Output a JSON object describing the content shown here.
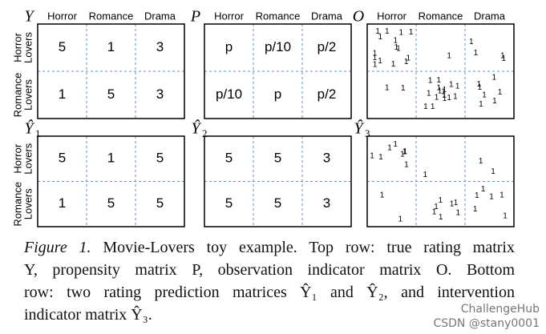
{
  "figure": {
    "matrices": [
      {
        "symbol": "Y",
        "columns": [
          "Horror",
          "Romance",
          "Drama"
        ],
        "rows": [
          [
            "Horror",
            "Lovers"
          ],
          [
            "Romance",
            "Lovers"
          ]
        ],
        "cells": [
          [
            5,
            1,
            3
          ],
          [
            1,
            5,
            3
          ]
        ]
      },
      {
        "symbol": "P",
        "columns": [
          "Horror",
          "Romance",
          "Drama"
        ],
        "cells": [
          [
            "p",
            "p/10",
            "p/2"
          ],
          [
            "p/10",
            "p",
            "p/2"
          ]
        ]
      },
      {
        "symbol": "O",
        "columns": [
          "Horror",
          "Romance",
          "Drama"
        ],
        "cells": [
          [
            [
              "1",
              "1",
              "1",
              "1",
              "1",
              "1",
              "1",
              "1",
              "1",
              "1",
              "1",
              "1",
              "1",
              "1",
              "1"
            ],
            [
              "1"
            ],
            [
              "1",
              "1",
              "1",
              "1"
            ]
          ],
          [
            [
              "1",
              "1"
            ],
            [
              "1",
              "1",
              "1",
              "1",
              "1",
              "1",
              "1",
              "1",
              "1",
              "1",
              "1",
              "1",
              "1",
              "1",
              "1",
              "1"
            ],
            [
              "1",
              "1",
              "1",
              "1",
              "1",
              "1",
              "1"
            ]
          ]
        ]
      },
      {
        "symbol": "Ŷ",
        "subscript": "1",
        "rows": [
          [
            "Horror",
            "Lovers"
          ],
          [
            "Romance",
            "Lovers"
          ]
        ],
        "cells": [
          [
            5,
            1,
            5
          ],
          [
            1,
            5,
            5
          ]
        ]
      },
      {
        "symbol": "Ŷ",
        "subscript": "2",
        "cells": [
          [
            5,
            5,
            3
          ],
          [
            5,
            5,
            3
          ]
        ]
      },
      {
        "symbol": "Ŷ",
        "subscript": "3",
        "cells": [
          [
            [
              "1",
              "1",
              "1",
              "1",
              "1",
              "1",
              "1",
              "1"
            ],
            [
              "1"
            ],
            [
              "1",
              "1"
            ]
          ],
          [
            [
              "1",
              "1"
            ],
            [
              "1",
              "1",
              "1",
              "1",
              "1",
              "1",
              "1"
            ],
            [
              "1",
              "1",
              "1",
              "1",
              "1",
              "1"
            ]
          ]
        ]
      }
    ],
    "caption": {
      "label": "Figure 1.",
      "lines": [
        "Movie-Lovers toy example. Top row: true rating matrix",
        "Y, propensity matrix P, observation indicator matrix O. Bottom",
        "row: two rating prediction matrices Ŷ₁ and Ŷ₂, and intervention",
        "indicator matrix Ŷ₃."
      ]
    },
    "watermark": [
      "ChallengeHub",
      "CSDN @stany0001"
    ]
  }
}
